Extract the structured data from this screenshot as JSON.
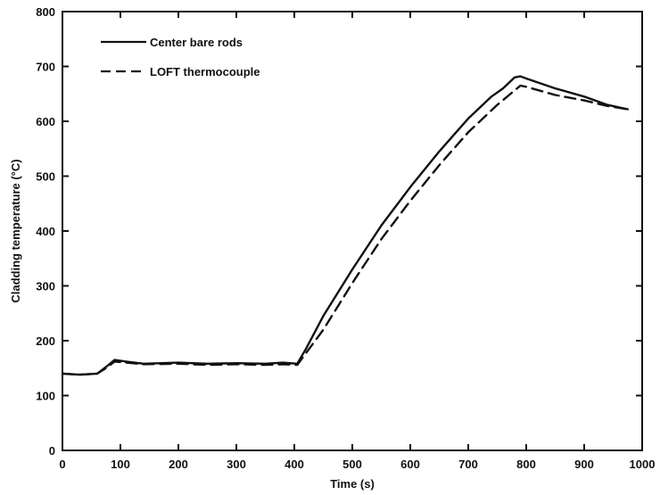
{
  "chart_data": {
    "type": "line",
    "xlabel": "Time (s)",
    "ylabel": "Cladding temperature (°C)",
    "xlim": [
      0,
      1000
    ],
    "ylim": [
      0,
      800
    ],
    "xticks": [
      0,
      100,
      200,
      300,
      400,
      500,
      600,
      700,
      800,
      900,
      1000
    ],
    "yticks": [
      0,
      100,
      200,
      300,
      400,
      500,
      600,
      700,
      800
    ],
    "grid": false,
    "legend_position": "top-left",
    "series": [
      {
        "name": "Center bare rods",
        "style": "solid",
        "color": "#111111",
        "x": [
          0,
          30,
          60,
          75,
          90,
          110,
          140,
          200,
          250,
          300,
          350,
          380,
          405,
          420,
          450,
          500,
          550,
          600,
          650,
          700,
          740,
          760,
          780,
          790,
          800,
          850,
          900,
          940,
          975
        ],
        "y": [
          140,
          138,
          140,
          152,
          165,
          162,
          158,
          160,
          158,
          159,
          158,
          160,
          158,
          185,
          245,
          330,
          410,
          480,
          545,
          605,
          645,
          660,
          680,
          682,
          678,
          660,
          645,
          630,
          622
        ]
      },
      {
        "name": "LOFT thermocouple",
        "style": "dashed",
        "color": "#111111",
        "x": [
          0,
          30,
          60,
          75,
          90,
          110,
          140,
          200,
          250,
          300,
          350,
          380,
          405,
          450,
          500,
          550,
          600,
          650,
          700,
          750,
          790,
          800,
          850,
          900,
          940,
          975
        ],
        "y": [
          140,
          138,
          140,
          150,
          162,
          160,
          157,
          158,
          156,
          157,
          156,
          157,
          156,
          220,
          305,
          385,
          455,
          520,
          580,
          630,
          665,
          663,
          648,
          638,
          628,
          622
        ]
      }
    ]
  }
}
